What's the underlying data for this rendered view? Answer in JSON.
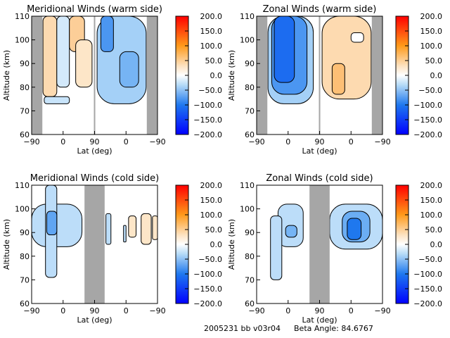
{
  "footer": {
    "id_text": "2005231 bb v03r04",
    "beta_label": "Beta Angle: 84.6767"
  },
  "chart_data": [
    {
      "type": "heatmap",
      "subtype": "filled-contour",
      "title": "Meridional Winds (warm side)",
      "xlabel": "Lat (deg)",
      "ylabel": "Altitude (km)",
      "x_ticks": [
        "-90",
        "0",
        "90",
        "0",
        "-90"
      ],
      "y_ticks": [
        "60",
        "70",
        "80",
        "90",
        "100",
        "110"
      ],
      "ylim": [
        60,
        110
      ],
      "colorbar": {
        "min": -200,
        "max": 200,
        "ticks": [
          "200.0",
          "150.0",
          "100.0",
          "50.0",
          "0.0",
          "-50.0",
          "-100.0",
          "-150.0",
          "-200.0"
        ]
      },
      "no_data_bands": [
        [
          0.0,
          0.085
        ],
        [
          0.915,
          1.0
        ]
      ],
      "divider_at": 0.5,
      "regions": [
        {
          "x": [
            0.09,
            0.2
          ],
          "y": [
            76,
            110
          ],
          "v": 35
        },
        {
          "x": [
            0.2,
            0.3
          ],
          "y": [
            80,
            110
          ],
          "v": -20
        },
        {
          "x": [
            0.3,
            0.42
          ],
          "y": [
            95,
            110
          ],
          "v": 45
        },
        {
          "x": [
            0.35,
            0.48
          ],
          "y": [
            80,
            100
          ],
          "v": 25
        },
        {
          "x": [
            0.1,
            0.3
          ],
          "y": [
            73,
            76
          ],
          "v": -25
        },
        {
          "x": [
            0.52,
            0.91
          ],
          "y": [
            73,
            110
          ],
          "v": -40
        },
        {
          "x": [
            0.55,
            0.65
          ],
          "y": [
            95,
            110
          ],
          "v": -80
        },
        {
          "x": [
            0.7,
            0.85
          ],
          "y": [
            80,
            95
          ],
          "v": -60
        }
      ]
    },
    {
      "type": "heatmap",
      "subtype": "filled-contour",
      "title": "Zonal Winds (warm side)",
      "xlabel": "Lat (deg)",
      "ylabel": "Altitude (km)",
      "x_ticks": [
        "-90",
        "0",
        "90",
        "0",
        "-90"
      ],
      "y_ticks": [
        "60",
        "70",
        "80",
        "90",
        "100",
        "110"
      ],
      "ylim": [
        60,
        110
      ],
      "colorbar": {
        "min": -200,
        "max": 200,
        "ticks": [
          "200.0",
          "150.0",
          "100.0",
          "50.0",
          "0.0",
          "-50.0",
          "-100.0",
          "-150.0",
          "-200.0"
        ]
      },
      "no_data_bands": [
        [
          0.0,
          0.085
        ],
        [
          0.915,
          1.0
        ]
      ],
      "divider_at": 0.5,
      "regions": [
        {
          "x": [
            0.09,
            0.45
          ],
          "y": [
            73,
            110
          ],
          "v": -40
        },
        {
          "x": [
            0.12,
            0.4
          ],
          "y": [
            77,
            110
          ],
          "v": -80
        },
        {
          "x": [
            0.14,
            0.3
          ],
          "y": [
            82,
            110
          ],
          "v": -110
        },
        {
          "x": [
            0.52,
            0.91
          ],
          "y": [
            75,
            110
          ],
          "v": 35
        },
        {
          "x": [
            0.6,
            0.7
          ],
          "y": [
            77,
            90
          ],
          "v": 60
        },
        {
          "x": [
            0.75,
            0.85
          ],
          "y": [
            99,
            103
          ],
          "v": 0
        }
      ]
    },
    {
      "type": "heatmap",
      "subtype": "filled-contour",
      "title": "Meridional Winds (cold side)",
      "xlabel": "Lat (deg)",
      "ylabel": "Altitude (km)",
      "x_ticks": [
        "-90",
        "0",
        "90",
        "0",
        "-90"
      ],
      "y_ticks": [
        "60",
        "70",
        "80",
        "90",
        "100",
        "110"
      ],
      "ylim": [
        60,
        110
      ],
      "colorbar": {
        "min": -200,
        "max": 200,
        "ticks": [
          "200.0",
          "150.0",
          "100.0",
          "50.0",
          "0.0",
          "-50.0",
          "-100.0",
          "-150.0",
          "-200.0"
        ]
      },
      "no_data_bands": [
        [
          0.42,
          0.58
        ]
      ],
      "regions": [
        {
          "x": [
            0.0,
            0.4
          ],
          "y": [
            84,
            102
          ],
          "v": -30
        },
        {
          "x": [
            0.11,
            0.2
          ],
          "y": [
            71,
            110
          ],
          "v": -30
        },
        {
          "x": [
            0.12,
            0.2
          ],
          "y": [
            89,
            99
          ],
          "v": -70
        },
        {
          "x": [
            0.59,
            0.63
          ],
          "y": [
            85,
            98
          ],
          "v": -30
        },
        {
          "x": [
            0.73,
            0.75
          ],
          "y": [
            86,
            93
          ],
          "v": -30
        },
        {
          "x": [
            0.77,
            0.83
          ],
          "y": [
            88,
            97
          ],
          "v": 25
        },
        {
          "x": [
            0.87,
            0.95
          ],
          "y": [
            85,
            98
          ],
          "v": 25
        },
        {
          "x": [
            0.96,
            1.0
          ],
          "y": [
            87,
            97
          ],
          "v": 25
        }
      ]
    },
    {
      "type": "heatmap",
      "subtype": "filled-contour",
      "title": "Zonal Winds (cold side)",
      "xlabel": "Lat (deg)",
      "ylabel": "Altitude (km)",
      "x_ticks": [
        "-90",
        "0",
        "90",
        "0",
        "-90"
      ],
      "y_ticks": [
        "60",
        "70",
        "80",
        "90",
        "100",
        "110"
      ],
      "ylim": [
        60,
        110
      ],
      "colorbar": {
        "min": -200,
        "max": 200,
        "ticks": [
          "200.0",
          "150.0",
          "100.0",
          "50.0",
          "0.0",
          "-50.0",
          "-100.0",
          "-150.0",
          "-200.0"
        ]
      },
      "no_data_bands": [
        [
          0.42,
          0.58
        ]
      ],
      "regions": [
        {
          "x": [
            0.17,
            0.37
          ],
          "y": [
            84,
            102
          ],
          "v": -30
        },
        {
          "x": [
            0.11,
            0.2
          ],
          "y": [
            70,
            97
          ],
          "v": -30
        },
        {
          "x": [
            0.23,
            0.32
          ],
          "y": [
            88,
            93
          ],
          "v": -60
        },
        {
          "x": [
            0.58,
            1.0
          ],
          "y": [
            83,
            102
          ],
          "v": -30
        },
        {
          "x": [
            0.68,
            0.9
          ],
          "y": [
            86,
            99
          ],
          "v": -65
        },
        {
          "x": [
            0.72,
            0.83
          ],
          "y": [
            87,
            96
          ],
          "v": -100
        }
      ]
    }
  ]
}
